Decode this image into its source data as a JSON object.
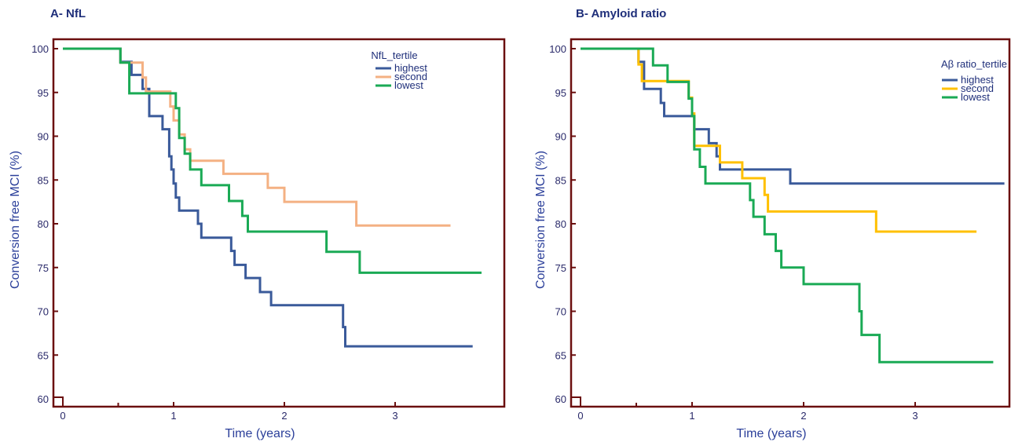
{
  "chart_data": [
    {
      "type": "line",
      "panel_title": "A- NfL",
      "xlabel": "Time (years)",
      "ylabel": "Conversion free MCI (%)",
      "xlim": [
        -0.1,
        3.75
      ],
      "ylim": [
        59.3,
        101
      ],
      "xticks": [
        0,
        1,
        2,
        3
      ],
      "yticks": [
        60,
        65,
        70,
        75,
        80,
        85,
        90,
        95,
        100
      ],
      "grid": false,
      "legend": {
        "title": "NfL_tertile",
        "placement": "top-right"
      },
      "series": [
        {
          "name": "highest",
          "color": "#3a5a9a",
          "x": [
            0,
            0.5,
            0.52,
            0.62,
            0.72,
            0.78,
            0.9,
            0.96,
            0.98,
            1.0,
            1.02,
            1.05,
            1.1,
            1.22,
            1.25,
            1.5,
            1.52,
            1.55,
            1.65,
            1.78,
            1.88,
            2.5,
            2.53,
            2.55,
            3.7
          ],
          "y": [
            100,
            100,
            98.5,
            97,
            95.4,
            92.3,
            90.8,
            87.7,
            86.2,
            84.6,
            83.0,
            81.5,
            81.5,
            80.0,
            78.4,
            78.4,
            76.9,
            75.3,
            73.8,
            72.2,
            70.7,
            70.7,
            68.2,
            66,
            66
          ]
        },
        {
          "name": "second",
          "color": "#f4b183",
          "x": [
            0,
            0.52,
            0.72,
            0.75,
            0.97,
            1.0,
            1.05,
            1.1,
            1.15,
            1.45,
            1.85,
            2.0,
            2.65,
            3.5
          ],
          "y": [
            100,
            98.4,
            96.7,
            95.1,
            93.4,
            91.8,
            90.2,
            88.5,
            87.2,
            85.7,
            84.1,
            82.5,
            79.8,
            79.8
          ],
          "step_x": [
            0,
            0.52,
            0.72,
            0.75,
            0.97,
            1.0,
            1.05,
            1.1,
            1.15,
            1.45,
            1.85,
            2.0,
            2.65,
            3.5
          ]
        },
        {
          "name": "lowest",
          "color": "#1aaa55",
          "x": [
            0,
            0.52,
            0.6,
            1.0,
            1.02,
            1.05,
            1.1,
            1.15,
            1.25,
            1.5,
            1.62,
            1.67,
            2.38,
            2.68,
            3.78
          ],
          "y": [
            100,
            98.4,
            94.9,
            94.9,
            93.2,
            89.8,
            88.0,
            86.2,
            84.4,
            82.6,
            80.9,
            79.1,
            76.8,
            74.4,
            74.4
          ]
        }
      ]
    },
    {
      "type": "line",
      "panel_title": "B- Amyloid ratio",
      "xlabel": "Time (years)",
      "ylabel": "Conversion free MCI (%)",
      "xlim": [
        -0.1,
        3.85
      ],
      "ylim": [
        59.3,
        101
      ],
      "xticks": [
        0,
        1,
        2,
        3
      ],
      "yticks": [
        60,
        65,
        70,
        75,
        80,
        85,
        90,
        95,
        100
      ],
      "grid": false,
      "legend": {
        "title": "Aβ ratio_tertile",
        "placement": "top-right"
      },
      "series": [
        {
          "name": "highest",
          "color": "#3a5a9a",
          "x": [
            0,
            0.5,
            0.52,
            0.57,
            0.72,
            0.75,
            1.0,
            1.02,
            1.15,
            1.22,
            1.25,
            1.88,
            3.8
          ],
          "y": [
            100,
            100,
            98.5,
            95.4,
            93.8,
            92.3,
            92.3,
            90.8,
            89.2,
            87.7,
            86.2,
            84.6,
            84.6
          ]
        },
        {
          "name": "second",
          "color": "#ffc000",
          "x": [
            0,
            0.52,
            0.55,
            0.97,
            1.0,
            1.02,
            1.22,
            1.25,
            1.45,
            1.65,
            1.68,
            2.65,
            3.55
          ],
          "y": [
            100,
            98.2,
            96.3,
            94.4,
            92.6,
            88.9,
            88.9,
            87.0,
            85.2,
            83.3,
            81.4,
            79.1,
            79.1
          ]
        },
        {
          "name": "lowest",
          "color": "#1aaa55",
          "x": [
            0,
            0.65,
            0.78,
            0.97,
            1.0,
            1.02,
            1.07,
            1.12,
            1.52,
            1.55,
            1.65,
            1.75,
            1.8,
            1.9,
            2.0,
            2.5,
            2.52,
            2.55,
            2.68,
            3.7
          ],
          "y": [
            100,
            98.1,
            96.2,
            94.3,
            92.3,
            88.5,
            86.5,
            84.6,
            82.7,
            80.8,
            78.8,
            76.9,
            75.0,
            75.0,
            73.1,
            70.0,
            67.3,
            67.3,
            64.2,
            64.2
          ]
        }
      ]
    }
  ]
}
